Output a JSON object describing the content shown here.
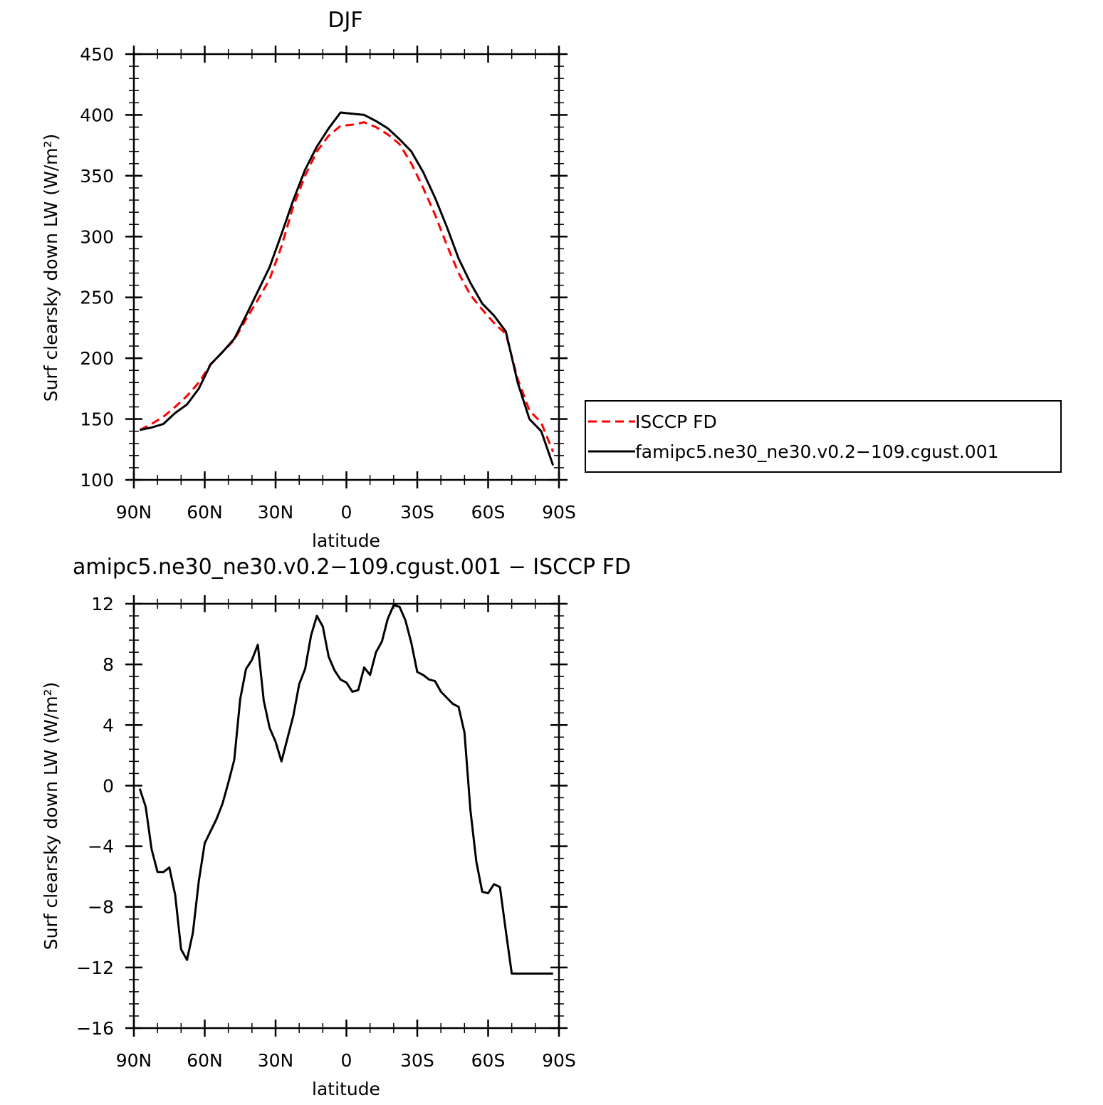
{
  "chart_data": [
    {
      "type": "line",
      "title": "DJF",
      "xlabel": "latitude",
      "ylabel": "Surf clearsky down LW (W/m²)",
      "xlim": [
        90,
        -90
      ],
      "ylim": [
        100,
        450
      ],
      "x_ticks": [
        90,
        60,
        30,
        0,
        -30,
        -60,
        -90
      ],
      "x_tick_labels": [
        "90N",
        "60N",
        "30N",
        "0",
        "30S",
        "60S",
        "90S"
      ],
      "y_ticks": [
        100,
        150,
        200,
        250,
        300,
        350,
        400,
        450
      ],
      "y_tick_labels": [
        "100",
        "150",
        "200",
        "250",
        "300",
        "350",
        "400",
        "450"
      ],
      "legend_position": "outside-right",
      "series": [
        {
          "name": "ISCCP FD",
          "color": "#ff0000",
          "dash": "dashed",
          "x": [
            87.5,
            82.5,
            77.5,
            72.5,
            67.5,
            62.5,
            57.5,
            52.5,
            47.5,
            42.5,
            37.5,
            32.5,
            27.5,
            22.5,
            17.5,
            12.5,
            7.5,
            2.5,
            -2.5,
            -7.5,
            -12.5,
            -17.5,
            -22.5,
            -27.5,
            -32.5,
            -37.5,
            -42.5,
            -47.5,
            -52.5,
            -57.5,
            -62.5,
            -67.5,
            -72.5,
            -77.5,
            -82.5,
            -87.5
          ],
          "values": [
            141,
            146,
            152,
            160,
            169,
            180,
            195,
            205,
            215,
            232,
            248,
            265,
            292,
            325,
            350,
            370,
            383,
            391,
            392,
            394,
            390,
            384,
            376,
            360,
            340,
            318,
            293,
            270,
            252,
            240,
            229,
            220,
            183,
            157,
            147,
            123
          ]
        },
        {
          "name": "famipc5.ne30_ne30.v0.2−109.cgust.001",
          "color": "#000000",
          "dash": "solid",
          "x": [
            87.5,
            82.5,
            77.5,
            72.5,
            67.5,
            62.5,
            57.5,
            52.5,
            47.5,
            42.5,
            37.5,
            32.5,
            27.5,
            22.5,
            17.5,
            12.5,
            7.5,
            2.5,
            -2.5,
            -7.5,
            -12.5,
            -17.5,
            -22.5,
            -27.5,
            -32.5,
            -37.5,
            -42.5,
            -47.5,
            -52.5,
            -57.5,
            -62.5,
            -67.5,
            -72.5,
            -77.5,
            -82.5,
            -87.5
          ],
          "values": [
            141,
            143,
            146,
            155,
            162,
            175,
            195,
            205,
            216,
            235,
            255,
            275,
            302,
            330,
            355,
            374,
            389,
            402,
            401,
            400,
            395,
            389,
            380,
            370,
            353,
            332,
            308,
            282,
            262,
            245,
            235,
            222,
            180,
            150,
            140,
            112
          ]
        }
      ]
    },
    {
      "type": "line",
      "title": "amipc5.ne30_ne30.v0.2−109.cgust.001 − ISCCP FD",
      "xlabel": "latitude",
      "ylabel": "Surf clearsky down LW (W/m²)",
      "xlim": [
        90,
        -90
      ],
      "ylim": [
        -16,
        12
      ],
      "x_ticks": [
        90,
        60,
        30,
        0,
        -30,
        -60,
        -90
      ],
      "x_tick_labels": [
        "90N",
        "60N",
        "30N",
        "0",
        "30S",
        "60S",
        "90S"
      ],
      "y_ticks": [
        -16,
        -12,
        -8,
        -4,
        0,
        4,
        8,
        12
      ],
      "y_tick_labels": [
        "−16",
        "−12",
        "−8",
        "−4",
        "0",
        "4",
        "8",
        "12"
      ],
      "series": [
        {
          "color": "#000000",
          "dash": "solid",
          "x": [
            87.5,
            85,
            82.5,
            80,
            77.5,
            75,
            72.5,
            70,
            67.5,
            65,
            62.5,
            60,
            57.5,
            55,
            52.5,
            50,
            47.5,
            45,
            42.5,
            40,
            37.5,
            35,
            32.5,
            30,
            27.5,
            25,
            22.5,
            20,
            17.5,
            15,
            12.5,
            10,
            7.5,
            5,
            2.5,
            0,
            -2.5,
            -5,
            -7.5,
            -10,
            -12.5,
            -15,
            -17.5,
            -20,
            -22.5,
            -25,
            -27.5,
            -30,
            -32.5,
            -35,
            -37.5,
            -40,
            -42.5,
            -45,
            -47.5,
            -50,
            -52.5,
            -55,
            -57.5,
            -60,
            -62.5,
            -65,
            -67.5,
            -70,
            -72.5,
            -75,
            -77.5,
            -80,
            -82.5,
            -85,
            -87.5
          ],
          "values": [
            -0.2,
            -1.4,
            -4.2,
            -5.7,
            -5.7,
            -5.4,
            -7.2,
            -10.8,
            -11.5,
            -9.7,
            -6.3,
            -3.8,
            -3.0,
            -2.2,
            -1.2,
            0.2,
            1.7,
            5.7,
            7.7,
            8.3,
            9.3,
            5.6,
            3.8,
            2.9,
            1.6,
            3.1,
            4.6,
            6.7,
            7.7,
            9.9,
            11.2,
            10.5,
            8.5,
            7.6,
            7.0,
            6.8,
            6.2,
            6.3,
            7.8,
            7.3,
            8.8,
            9.5,
            11.0,
            11.9,
            11.8,
            10.9,
            9.4,
            7.5,
            7.3,
            7.0,
            6.9,
            6.2,
            5.8,
            5.4,
            5.2,
            3.5,
            -1.6,
            -5.0,
            -7.0,
            -7.1,
            -6.5,
            -6.7,
            -9.6,
            -12.4,
            -12.4,
            -12.4,
            -12.4,
            -12.4,
            -12.4,
            -12.4,
            -12.4
          ]
        }
      ]
    }
  ]
}
